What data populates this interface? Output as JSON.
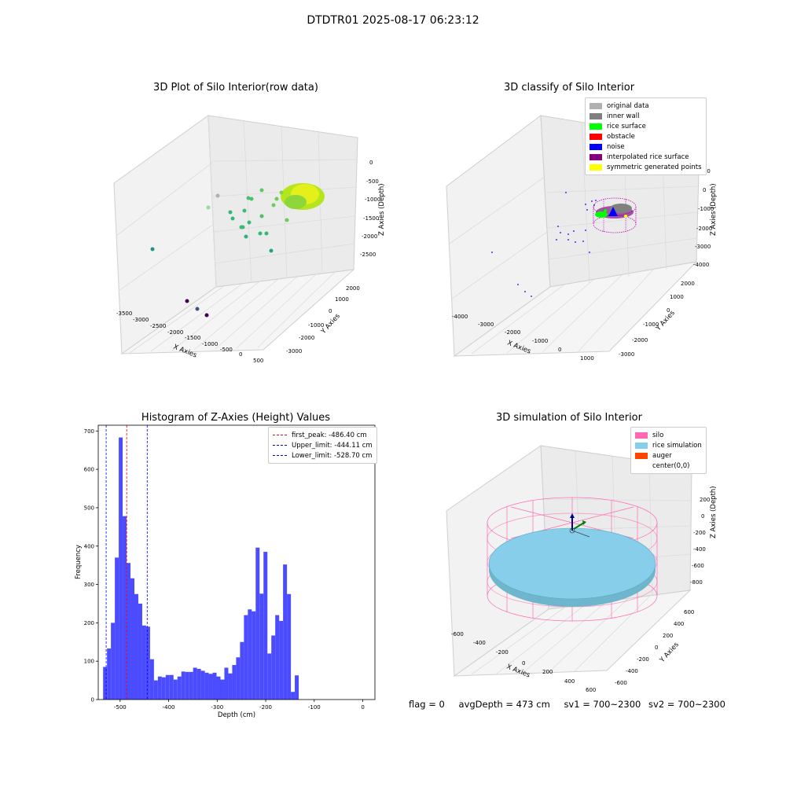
{
  "suptitle": "DTDTR01 2025-08-17 06:23:12",
  "panels": {
    "raw": {
      "title": "3D Plot of Silo Interior(row data)",
      "xlabel": "X Axies",
      "ylabel": "Y Axies",
      "zlabel": "Z Axies (Depth)",
      "xticks": [
        "-3500",
        "-3000",
        "-2500",
        "-2000",
        "-1500",
        "-1000",
        "-500",
        "0",
        "500"
      ],
      "yticks": [
        "2000",
        "1000",
        "0",
        "-1000",
        "-2000",
        "-3000"
      ],
      "zticks": [
        "0",
        "-500",
        "-1000",
        "-1500",
        "-2000",
        "-2500"
      ]
    },
    "classify": {
      "title": "3D classify of Silo Interior",
      "xlabel": "X Axies",
      "ylabel": "Y Axies",
      "zlabel": "Z Axies (Depth)",
      "xticks": [
        "-4000",
        "-3000",
        "-2000",
        "-1000",
        "0",
        "1000"
      ],
      "yticks": [
        "2000",
        "1000",
        "0",
        "-1000",
        "-2000",
        "-3000"
      ],
      "zticks": [
        "1000",
        "0",
        "-1000",
        "-2000",
        "-3000",
        "-4000"
      ],
      "legend": [
        {
          "label": "original data",
          "color": "#b0b0b0"
        },
        {
          "label": "inner wall",
          "color": "#808080"
        },
        {
          "label": "rice surface",
          "color": "#00ff00"
        },
        {
          "label": "obstacle",
          "color": "#ff0000"
        },
        {
          "label": "noise",
          "color": "#0000ff"
        },
        {
          "label": "interpolated rice surface",
          "color": "#800080"
        },
        {
          "label": "symmetric generated points",
          "color": "#ffff00"
        }
      ]
    },
    "simulation": {
      "title": "3D simulation of Silo Interior",
      "xlabel": "X Axies",
      "ylabel": "Y Axies",
      "zlabel": "Z Axies (Depth)",
      "xticks": [
        "-600",
        "-400",
        "-200",
        "0",
        "200",
        "400",
        "600"
      ],
      "yticks": [
        "600",
        "400",
        "200",
        "0",
        "-200",
        "-400",
        "-600"
      ],
      "zticks": [
        "200",
        "0",
        "-200",
        "-400",
        "-600",
        "-800"
      ],
      "legend": [
        {
          "label": "silo",
          "color": "#ff69b4"
        },
        {
          "label": "rice simulation",
          "color": "#87ceeb"
        },
        {
          "label": "auger",
          "color": "#ff4500"
        },
        {
          "label": "center(0,0)",
          "color": ""
        }
      ]
    }
  },
  "chart_data": {
    "type": "bar",
    "title": "Histogram of Z-Axies (Height) Values",
    "xlabel": "Depth (cm)",
    "ylabel": "Frequency",
    "xlim": [
      -545,
      25
    ],
    "ylim": [
      0,
      715
    ],
    "bin_start": -535,
    "bin_width": 8.06,
    "values": [
      85,
      133,
      200,
      370,
      683,
      478,
      356,
      316,
      275,
      250,
      193,
      190,
      105,
      50,
      60,
      58,
      64,
      64,
      52,
      60,
      73,
      72,
      72,
      83,
      80,
      75,
      70,
      67,
      70,
      60,
      52,
      83,
      68,
      90,
      110,
      150,
      220,
      235,
      230,
      396,
      276,
      385,
      120,
      167,
      220,
      205,
      352,
      275,
      20,
      63
    ],
    "xticks": [
      "-500",
      "-400",
      "-300",
      "-200",
      "-100",
      "0"
    ],
    "xtick_values": [
      -500,
      -400,
      -300,
      -200,
      -100,
      0
    ],
    "yticks": [
      "0",
      "100",
      "200",
      "300",
      "400",
      "500",
      "600",
      "700"
    ],
    "ytick_values": [
      0,
      100,
      200,
      300,
      400,
      500,
      600,
      700
    ],
    "bar_color": "#4b4bff",
    "lines": [
      {
        "label": "first_peak: -486.40 cm",
        "value": -486.4,
        "color": "#ff0000"
      },
      {
        "label": "Upper_limit: -444.11 cm",
        "value": -444.11,
        "color": "#0000ff"
      },
      {
        "label": "Lower_limit: -528.70 cm",
        "value": -528.7,
        "color": "#0000ff"
      }
    ]
  },
  "footer": {
    "flag": "flag = 0",
    "avg": "avgDepth = 473 cm",
    "sv1": "sv1 = 700~2300",
    "sv2": "sv2 = 700~2300"
  }
}
